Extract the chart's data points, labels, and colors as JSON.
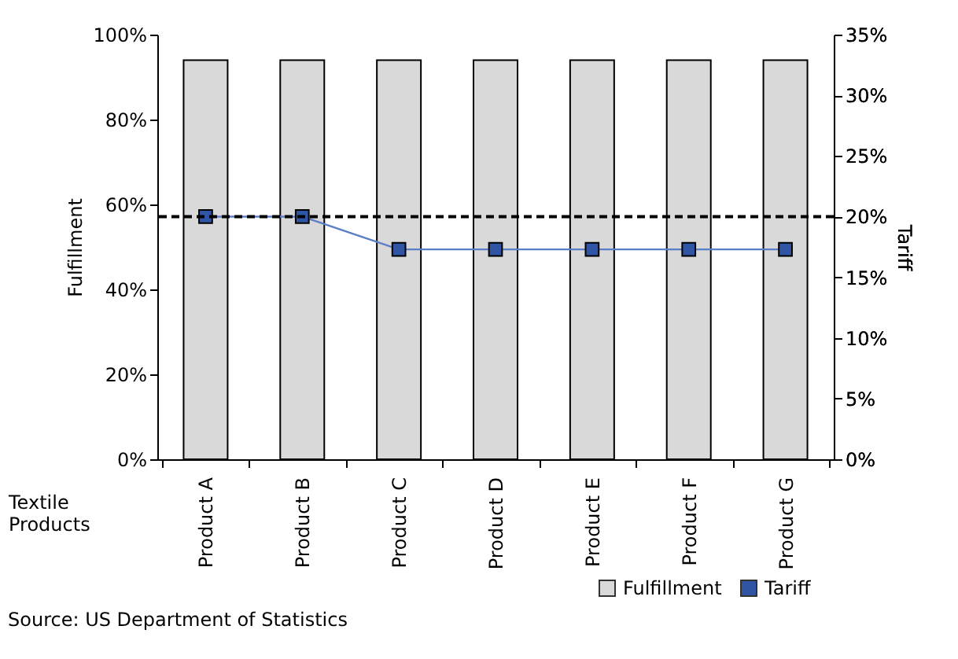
{
  "chart_data": {
    "type": "bar",
    "xlabel": "Textile Products",
    "ylabel": "Fulfillment",
    "y2label": "Tariff",
    "categories": [
      "Product A",
      "Product B",
      "Product C",
      "Product D",
      "Product E",
      "Product F",
      "Product G"
    ],
    "series": [
      {
        "name": "Fulfillment",
        "color": "#d9d9d9",
        "values": [
          94,
          94,
          94,
          94,
          94,
          94,
          94
        ]
      },
      {
        "name": "Tariff",
        "type": "line",
        "axis": "y2",
        "color": "#2f55a4",
        "marker": "square",
        "values": [
          20,
          20,
          17.3,
          17.3,
          17.3,
          17.3,
          17.3
        ]
      }
    ],
    "ylim": [
      0,
      100
    ],
    "yticks": [
      {
        "value": 0,
        "label": "0%"
      },
      {
        "value": 20,
        "label": "20%"
      },
      {
        "value": 40,
        "label": "40%"
      },
      {
        "value": 60,
        "label": "60%"
      },
      {
        "value": 80,
        "label": "80%"
      },
      {
        "value": 100,
        "label": "100%"
      }
    ],
    "y2lim": [
      0,
      35
    ],
    "y2ticks": [
      {
        "value": 0,
        "label": "0%"
      },
      {
        "value": 5,
        "label": "5%"
      },
      {
        "value": 10,
        "label": "10%"
      },
      {
        "value": 15,
        "label": "15%"
      },
      {
        "value": 20,
        "label": "20%"
      },
      {
        "value": 25,
        "label": "25%"
      },
      {
        "value": 30,
        "label": "30%"
      },
      {
        "value": 35,
        "label": "35%"
      }
    ],
    "ref_lines": [
      {
        "axis": "y2",
        "value": 20,
        "color": "#000000",
        "line_style": "dashed"
      }
    ],
    "legend": "bottom right",
    "grid": false,
    "annotations": [
      "Source: US Department of Statistics"
    ]
  }
}
